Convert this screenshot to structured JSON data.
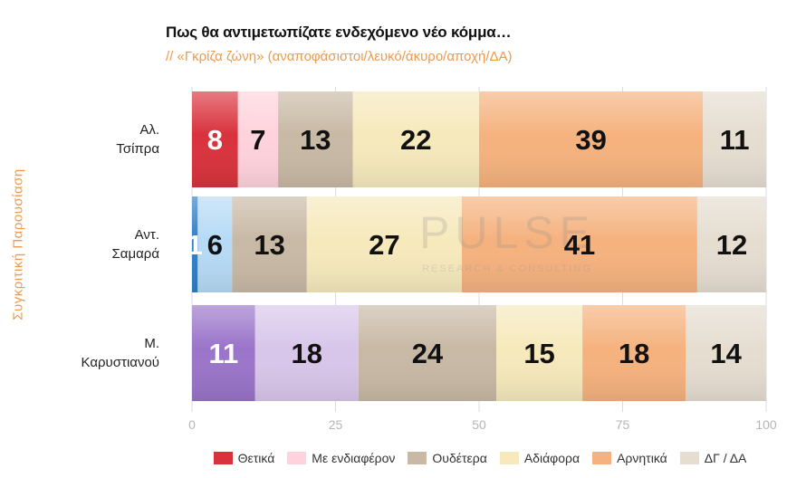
{
  "chart_data": {
    "type": "bar",
    "orientation": "horizontal",
    "stacked": true,
    "title": "Πως θα αντιμετωπίζατε ενδεχόμενο νέο κόμμα…",
    "subtitle": "// «Γκρίζα ζώνη» (αναποφάσιστοι/λευκό/άκυρο/αποχή/ΔΑ)",
    "ylabel": "Συγκριτική Παρουσίαση",
    "xlim": [
      0,
      100
    ],
    "xticks": [
      0,
      25,
      50,
      75,
      100
    ],
    "grid": true,
    "legend_position": "bottom",
    "watermark": "PULSE RESEARCH & CONSULTING",
    "categories": [
      [
        "Αλ.",
        "Τσίπρα"
      ],
      [
        "Αντ.",
        "Σαμαρά"
      ],
      [
        "Μ.",
        "Καρυστιανού"
      ]
    ],
    "category_colors": [
      [
        "#d9323c",
        "#ffd2dc",
        "#c8b9a5",
        "#f6e9bc",
        "#f5b27e",
        "#e5ddd0"
      ],
      [
        "#2f7fc8",
        "#b6daf5",
        "#c8b9a5",
        "#f6e9bc",
        "#f5b27e",
        "#e5ddd0"
      ],
      [
        "#9a74c9",
        "#d8c6ea",
        "#c8b9a5",
        "#f6e9bc",
        "#f5b27e",
        "#e5ddd0"
      ]
    ],
    "series": [
      {
        "name": "Θετικά",
        "values": [
          8,
          1,
          11
        ],
        "legend_color": "#d9323c",
        "label_color": "#ffffff"
      },
      {
        "name": "Με ενδιαφέρον",
        "values": [
          7,
          6,
          18
        ],
        "legend_color": "#ffd2dc",
        "label_color": "#111111"
      },
      {
        "name": "Ουδέτερα",
        "values": [
          13,
          13,
          24
        ],
        "legend_color": "#c8b9a5",
        "label_color": "#111111"
      },
      {
        "name": "Αδιάφορα",
        "values": [
          22,
          27,
          15
        ],
        "legend_color": "#f6e9bc",
        "label_color": "#111111"
      },
      {
        "name": "Αρνητικά",
        "values": [
          39,
          41,
          18
        ],
        "legend_color": "#f5b27e",
        "label_color": "#111111"
      },
      {
        "name": "ΔΓ / ΔΑ",
        "values": [
          11,
          12,
          14
        ],
        "legend_color": "#e5ddd0",
        "label_color": "#111111"
      }
    ]
  }
}
